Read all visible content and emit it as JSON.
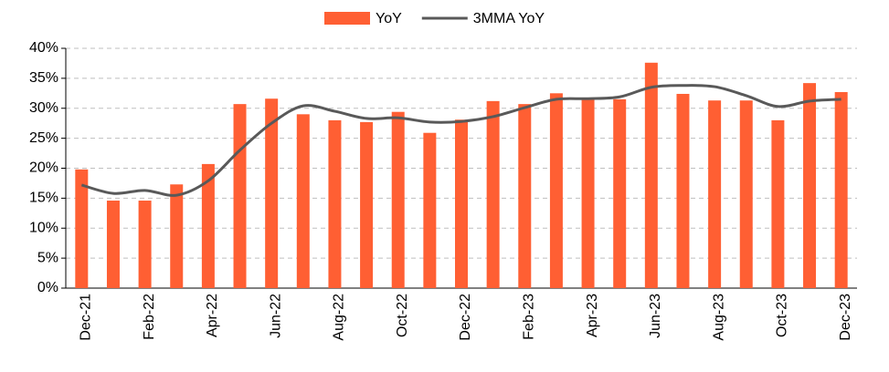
{
  "chart_data": {
    "type": "bar_line",
    "categories": [
      "Dec-21",
      null,
      "Feb-22",
      null,
      "Apr-22",
      null,
      "Jun-22",
      null,
      "Aug-22",
      null,
      "Oct-22",
      null,
      "Dec-22",
      null,
      "Feb-23",
      null,
      "Apr-23",
      null,
      "Jun-23",
      null,
      "Aug-23",
      null,
      "Oct-23",
      null,
      "Dec-23"
    ],
    "series": [
      {
        "name": "YoY",
        "kind": "bar",
        "color": "#ff5f33",
        "values": [
          19.8,
          14.6,
          14.6,
          17.3,
          20.7,
          30.7,
          31.6,
          29.0,
          28.0,
          27.7,
          29.4,
          25.9,
          28.1,
          31.2,
          30.7,
          32.5,
          31.6,
          31.5,
          37.6,
          32.4,
          31.3,
          31.3,
          28.0,
          34.2,
          32.7
        ]
      },
      {
        "name": "3MMA YoY",
        "kind": "line",
        "color": "#595959",
        "values": [
          17.2,
          15.8,
          16.3,
          15.5,
          17.9,
          23.0,
          27.5,
          30.4,
          29.5,
          28.3,
          28.4,
          27.7,
          27.8,
          28.6,
          30.1,
          31.5,
          31.6,
          31.9,
          33.5,
          33.8,
          33.6,
          32.1,
          30.3,
          31.2,
          31.5
        ]
      }
    ],
    "ylim": [
      0,
      40
    ],
    "yticks": [
      {
        "value": 0,
        "label": "0%"
      },
      {
        "value": 5,
        "label": "5%"
      },
      {
        "value": 10,
        "label": "10%"
      },
      {
        "value": 15,
        "label": "15%"
      },
      {
        "value": 20,
        "label": "20%"
      },
      {
        "value": 25,
        "label": "25%"
      },
      {
        "value": 30,
        "label": "30%"
      },
      {
        "value": 35,
        "label": "35%"
      },
      {
        "value": 40,
        "label": "40%"
      }
    ],
    "grid": true,
    "legend": "top"
  }
}
